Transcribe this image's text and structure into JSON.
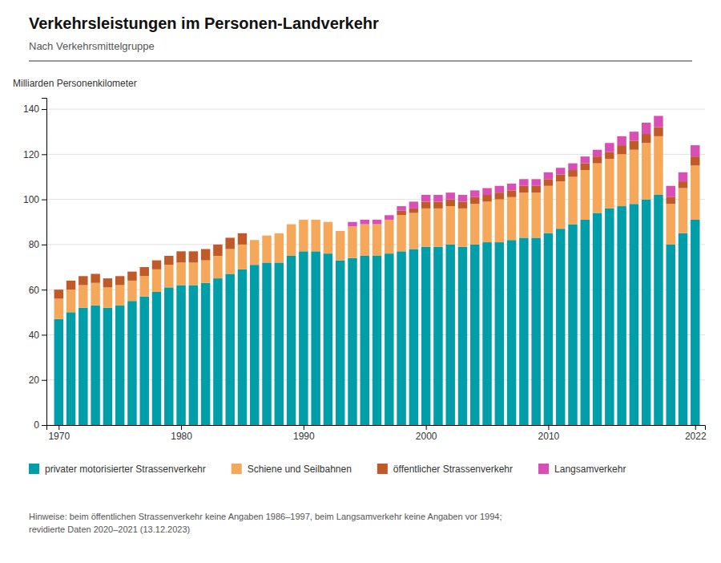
{
  "chart_data": {
    "type": "bar",
    "stacked": true,
    "title": "Verkehrsleistungen im Personen-Landverkehr",
    "subtitle": "Nach Verkehrsmittelgruppe",
    "ylabel": "Milliarden Personenkilometer",
    "annotations": [
      "Hinweise: beim öffentlichen Strassenverkehr keine Angaben 1986–1997, beim Langsamverkehr keine Angaben vor 1994;\nrevidierte Daten 2020–2021 (13.12.2023)"
    ],
    "x": [
      1970,
      1971,
      1972,
      1973,
      1974,
      1975,
      1976,
      1977,
      1978,
      1979,
      1980,
      1981,
      1982,
      1983,
      1984,
      1985,
      1986,
      1987,
      1988,
      1989,
      1990,
      1991,
      1992,
      1993,
      1994,
      1995,
      1996,
      1997,
      1998,
      1999,
      2000,
      2001,
      2002,
      2003,
      2004,
      2005,
      2006,
      2007,
      2008,
      2009,
      2010,
      2011,
      2012,
      2013,
      2014,
      2015,
      2016,
      2017,
      2018,
      2019,
      2020,
      2021,
      2022
    ],
    "series": [
      {
        "name": "privater motorisierter Strassenverkehr",
        "color": "#009EA8",
        "values": [
          47,
          50,
          52,
          53,
          52,
          53,
          55,
          57,
          59,
          61,
          62,
          62,
          63,
          65,
          67,
          69,
          71,
          72,
          72,
          75,
          77,
          77,
          76,
          73,
          74,
          75,
          75,
          76,
          77,
          78,
          79,
          79,
          80,
          79,
          80,
          81,
          81,
          82,
          83,
          83,
          85,
          87,
          89,
          91,
          94,
          96,
          97,
          98,
          100,
          102,
          80,
          85,
          91
        ]
      },
      {
        "name": "Schiene und Seilbahnen",
        "color": "#F5A85A",
        "values": [
          9,
          10,
          10,
          10,
          9,
          9,
          9,
          9,
          10,
          10,
          10,
          10,
          10,
          10,
          11,
          11,
          11,
          12,
          13,
          14,
          14,
          14,
          14,
          13,
          14,
          14,
          14,
          15,
          16,
          16,
          17,
          17,
          17,
          17,
          18,
          18,
          19,
          19,
          20,
          20,
          21,
          21,
          21,
          22,
          22,
          22,
          23,
          24,
          25,
          26,
          18,
          20,
          24
        ]
      },
      {
        "name": "öffentlicher Strassenverkehr",
        "color": "#C05A28",
        "values": [
          4,
          4,
          4,
          4,
          4,
          4,
          4,
          4,
          4,
          4,
          5,
          5,
          5,
          5,
          5,
          5,
          0,
          0,
          0,
          0,
          0,
          0,
          0,
          0,
          0,
          0,
          0,
          0,
          2,
          2,
          3,
          3,
          3,
          3,
          3,
          3,
          3,
          3,
          3,
          3,
          3,
          3,
          3,
          3,
          3,
          3,
          4,
          4,
          4,
          4,
          3,
          3,
          4
        ]
      },
      {
        "name": "Langsamverkehr",
        "color": "#D94FB5",
        "values": [
          0,
          0,
          0,
          0,
          0,
          0,
          0,
          0,
          0,
          0,
          0,
          0,
          0,
          0,
          0,
          0,
          0,
          0,
          0,
          0,
          0,
          0,
          0,
          0,
          2,
          2,
          2,
          2,
          2,
          3,
          3,
          3,
          3,
          3,
          3,
          3,
          3,
          3,
          3,
          3,
          3,
          3,
          3,
          3,
          3,
          4,
          4,
          4,
          5,
          5,
          5,
          4,
          5
        ]
      }
    ],
    "xlim": [
      1969.0,
      2022.8
    ],
    "xticks": [
      1970,
      1980,
      1990,
      2000,
      2010,
      2022
    ],
    "ylim": [
      0,
      145
    ],
    "yticks": [
      0,
      20,
      40,
      60,
      80,
      100,
      120,
      140
    ],
    "grid": true,
    "legend": "bottom"
  }
}
